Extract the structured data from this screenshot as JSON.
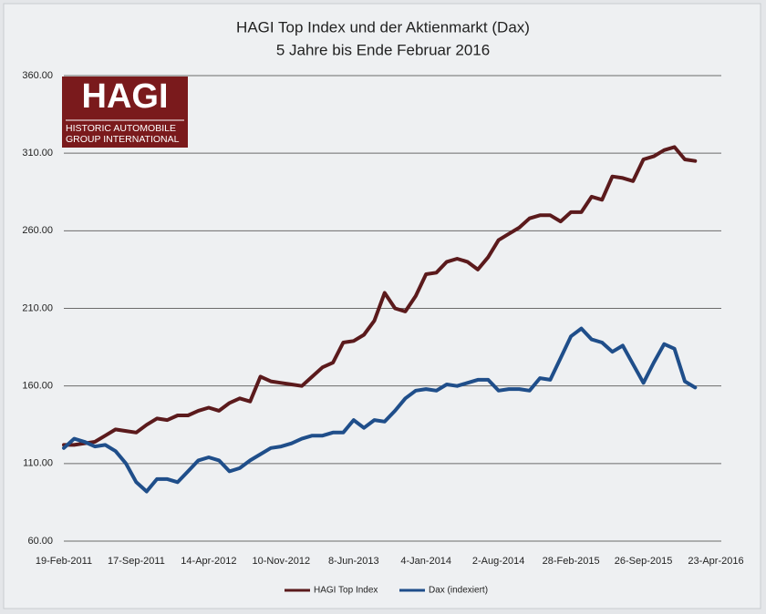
{
  "chart_data": {
    "type": "line",
    "title": "HAGI Top Index und der Aktienmarkt (Dax)",
    "subtitle": "5 Jahre bis Ende Februar 2016",
    "logo_text": [
      "HAGI",
      "HISTORIC AUTOMOBILE",
      "GROUP INTERNATIONAL"
    ],
    "categories": [
      "19-Feb-2011",
      null,
      null,
      null,
      null,
      null,
      null,
      "17-Sep-2011",
      null,
      null,
      null,
      null,
      null,
      null,
      "14-Apr-2012",
      null,
      null,
      null,
      null,
      null,
      null,
      "10-Nov-2012",
      null,
      null,
      null,
      null,
      null,
      null,
      "8-Jun-2013",
      null,
      null,
      null,
      null,
      null,
      null,
      "4-Jan-2014",
      null,
      null,
      null,
      null,
      null,
      null,
      "2-Aug-2014",
      null,
      null,
      null,
      null,
      null,
      null,
      "28-Feb-2015",
      null,
      null,
      null,
      null,
      null,
      null,
      "26-Sep-2015",
      null,
      null,
      null,
      null,
      null,
      null,
      "23-Apr-2016"
    ],
    "series": [
      {
        "name": "HAGI Top Index",
        "color": "#5b1a1c",
        "values": [
          122,
          122,
          123,
          124,
          128,
          132,
          131,
          130,
          135,
          139,
          138,
          141,
          141,
          144,
          146,
          144,
          149,
          152,
          150,
          166,
          163,
          162,
          161,
          160,
          166,
          172,
          175,
          188,
          189,
          193,
          202,
          220,
          210,
          208,
          218,
          232,
          233,
          240,
          242,
          240,
          235,
          243,
          254,
          258,
          262,
          268,
          270,
          270,
          266,
          272,
          272,
          282,
          280,
          295,
          294,
          292,
          306,
          308,
          312,
          314,
          306,
          305,
          null,
          null
        ]
      },
      {
        "name": "Dax (indexiert)",
        "color": "#1f4e8a",
        "values": [
          120,
          126,
          124,
          121,
          122,
          118,
          110,
          98,
          92,
          100,
          100,
          98,
          105,
          112,
          114,
          112,
          105,
          107,
          112,
          116,
          120,
          121,
          123,
          126,
          128,
          128,
          130,
          130,
          138,
          133,
          138,
          137,
          144,
          152,
          157,
          158,
          157,
          161,
          160,
          162,
          164,
          164,
          157,
          158,
          158,
          157,
          165,
          164,
          178,
          192,
          197,
          190,
          188,
          182,
          186,
          174,
          162,
          175,
          187,
          184,
          163,
          159,
          null,
          null
        ]
      }
    ],
    "ylim": [
      60,
      360
    ],
    "yticks": [
      {
        "value": 60,
        "label": "60.00"
      },
      {
        "value": 110,
        "label": "110.00"
      },
      {
        "value": 160,
        "label": "160.00"
      },
      {
        "value": 210,
        "label": "210.00"
      },
      {
        "value": 260,
        "label": "260.00"
      },
      {
        "value": 310,
        "label": "310.00"
      },
      {
        "value": 360,
        "label": "360.00"
      }
    ],
    "grid": true
  }
}
